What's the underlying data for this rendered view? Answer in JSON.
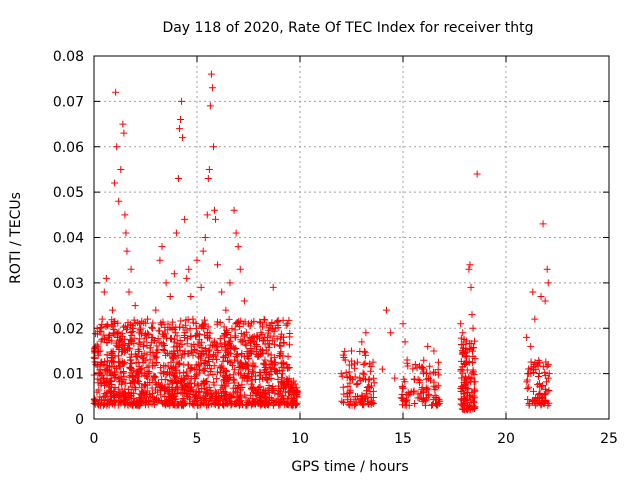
{
  "chart_data": {
    "type": "scatter",
    "title": "Day 118 of 2020, Rate Of TEC Index for receiver thtg",
    "xlabel": "GPS time / hours",
    "ylabel": "ROTI / TECUs",
    "xlim": [
      0,
      25
    ],
    "ylim": [
      0,
      0.08
    ],
    "x_ticks": [
      "0",
      "5",
      "10",
      "15",
      "20",
      "25"
    ],
    "y_ticks": [
      "0",
      "0.01",
      "0.02",
      "0.03",
      "0.04",
      "0.05",
      "0.06",
      "0.07",
      "0.08"
    ],
    "grid": true,
    "marker": "plus",
    "color": "#ff0000",
    "series": [
      {
        "points": [
          [
            0.1,
            0.012
          ],
          [
            0.2,
            0.008
          ],
          [
            0.3,
            0.015
          ],
          [
            0.4,
            0.022
          ],
          [
            0.5,
            0.028
          ],
          [
            0.6,
            0.031
          ],
          [
            0.7,
            0.018
          ],
          [
            0.8,
            0.006
          ],
          [
            0.9,
            0.024
          ],
          [
            1.0,
            0.052
          ],
          [
            1.05,
            0.072
          ],
          [
            1.1,
            0.06
          ],
          [
            1.2,
            0.048
          ],
          [
            1.3,
            0.055
          ],
          [
            1.4,
            0.065
          ],
          [
            1.45,
            0.063
          ],
          [
            1.5,
            0.045
          ],
          [
            1.55,
            0.041
          ],
          [
            1.6,
            0.037
          ],
          [
            1.7,
            0.028
          ],
          [
            1.8,
            0.033
          ],
          [
            1.9,
            0.02
          ],
          [
            2.0,
            0.025
          ],
          [
            2.2,
            0.019
          ],
          [
            2.4,
            0.016
          ],
          [
            2.6,
            0.022
          ],
          [
            2.8,
            0.018
          ],
          [
            3.0,
            0.024
          ],
          [
            3.2,
            0.035
          ],
          [
            3.3,
            0.038
          ],
          [
            3.5,
            0.03
          ],
          [
            3.7,
            0.027
          ],
          [
            3.9,
            0.032
          ],
          [
            4.0,
            0.041
          ],
          [
            4.1,
            0.053
          ],
          [
            4.15,
            0.064
          ],
          [
            4.2,
            0.066
          ],
          [
            4.25,
            0.07
          ],
          [
            4.3,
            0.062
          ],
          [
            4.4,
            0.044
          ],
          [
            4.5,
            0.031
          ],
          [
            4.6,
            0.033
          ],
          [
            4.7,
            0.027
          ],
          [
            4.8,
            0.022
          ],
          [
            5.0,
            0.035
          ],
          [
            5.2,
            0.029
          ],
          [
            5.3,
            0.037
          ],
          [
            5.4,
            0.04
          ],
          [
            5.5,
            0.045
          ],
          [
            5.55,
            0.053
          ],
          [
            5.6,
            0.055
          ],
          [
            5.65,
            0.069
          ],
          [
            5.7,
            0.076
          ],
          [
            5.75,
            0.073
          ],
          [
            5.8,
            0.06
          ],
          [
            5.85,
            0.046
          ],
          [
            5.9,
            0.044
          ],
          [
            6.0,
            0.034
          ],
          [
            6.2,
            0.028
          ],
          [
            6.4,
            0.024
          ],
          [
            6.6,
            0.03
          ],
          [
            6.8,
            0.046
          ],
          [
            6.9,
            0.041
          ],
          [
            7.0,
            0.038
          ],
          [
            7.1,
            0.033
          ],
          [
            7.3,
            0.026
          ],
          [
            7.5,
            0.021
          ],
          [
            7.7,
            0.018
          ],
          [
            7.9,
            0.016
          ],
          [
            8.1,
            0.019
          ],
          [
            8.3,
            0.013
          ],
          [
            8.5,
            0.012
          ],
          [
            8.7,
            0.029
          ],
          [
            8.8,
            0.02
          ],
          [
            9.0,
            0.014
          ],
          [
            9.2,
            0.018
          ],
          [
            9.4,
            0.021
          ],
          [
            9.6,
            0.008
          ],
          [
            9.8,
            0.006
          ],
          [
            12.0,
            0.01
          ],
          [
            12.1,
            0.007
          ],
          [
            12.2,
            0.013
          ],
          [
            12.5,
            0.015
          ],
          [
            12.7,
            0.005
          ],
          [
            12.9,
            0.009
          ],
          [
            13.0,
            0.017
          ],
          [
            13.1,
            0.012
          ],
          [
            13.2,
            0.019
          ],
          [
            13.4,
            0.006
          ],
          [
            13.6,
            0.008
          ],
          [
            14.0,
            0.011
          ],
          [
            14.2,
            0.024
          ],
          [
            14.4,
            0.019
          ],
          [
            14.6,
            0.009
          ],
          [
            15.0,
            0.021
          ],
          [
            15.1,
            0.017
          ],
          [
            15.2,
            0.013
          ],
          [
            15.4,
            0.006
          ],
          [
            15.6,
            0.012
          ],
          [
            15.8,
            0.008
          ],
          [
            16.0,
            0.011
          ],
          [
            16.2,
            0.016
          ],
          [
            16.5,
            0.015
          ],
          [
            16.6,
            0.007
          ],
          [
            17.8,
            0.021
          ],
          [
            17.9,
            0.019
          ],
          [
            18.0,
            0.012
          ],
          [
            18.1,
            0.008
          ],
          [
            18.2,
            0.033
          ],
          [
            18.25,
            0.034
          ],
          [
            18.3,
            0.029
          ],
          [
            18.35,
            0.023
          ],
          [
            18.4,
            0.02
          ],
          [
            18.6,
            0.054
          ],
          [
            21.0,
            0.018
          ],
          [
            21.1,
            0.007
          ],
          [
            21.2,
            0.016
          ],
          [
            21.3,
            0.028
          ],
          [
            21.4,
            0.022
          ],
          [
            21.7,
            0.027
          ],
          [
            21.8,
            0.043
          ],
          [
            21.9,
            0.026
          ],
          [
            22.0,
            0.033
          ],
          [
            22.05,
            0.03
          ],
          [
            22.1,
            0.01
          ],
          [
            21.6,
            0.004
          ]
        ],
        "dense_bands": [
          {
            "x_range": [
              0.0,
              9.5
            ],
            "y_range": [
              0.003,
              0.022
            ],
            "count": 1400
          },
          {
            "x_range": [
              9.5,
              9.9
            ],
            "y_range": [
              0.003,
              0.009
            ],
            "count": 40
          },
          {
            "x_range": [
              12.0,
              13.6
            ],
            "y_range": [
              0.003,
              0.015
            ],
            "count": 90
          },
          {
            "x_range": [
              14.9,
              16.8
            ],
            "y_range": [
              0.003,
              0.013
            ],
            "count": 90
          },
          {
            "x_range": [
              17.8,
              18.5
            ],
            "y_range": [
              0.002,
              0.018
            ],
            "count": 120
          },
          {
            "x_range": [
              21.0,
              22.1
            ],
            "y_range": [
              0.003,
              0.013
            ],
            "count": 70
          }
        ]
      }
    ]
  }
}
